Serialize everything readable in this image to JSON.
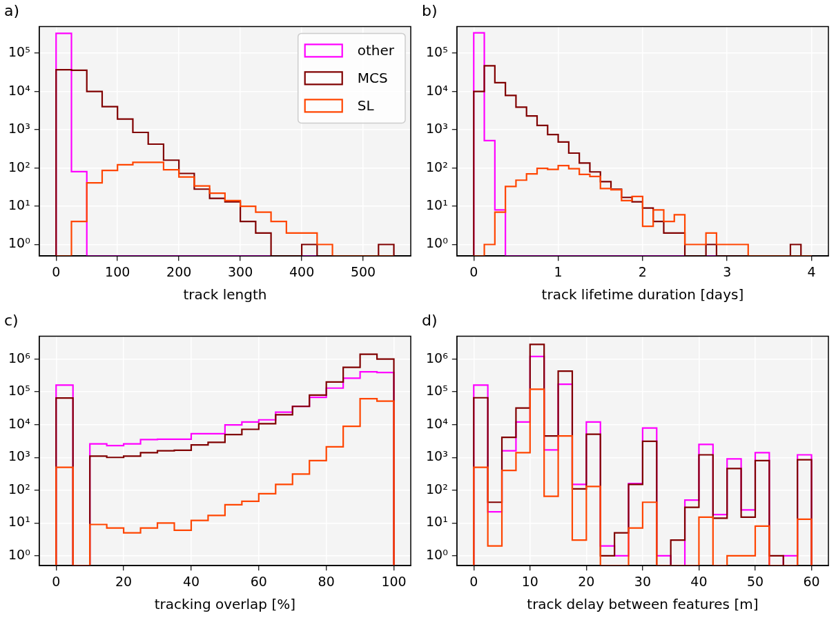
{
  "chart_data": [
    {
      "type": "histogram",
      "title": "a)",
      "xlabel": "track length",
      "bins": [
        0,
        25,
        50,
        75,
        100,
        125,
        150,
        175,
        200,
        225,
        250,
        275,
        300,
        325,
        350,
        375,
        400,
        425,
        450,
        475,
        500,
        525,
        550
      ],
      "series": [
        {
          "name": "other",
          "color": "#ff00ff",
          "values": [
            330000,
            80,
            null,
            null,
            null,
            null,
            null,
            null,
            null,
            null,
            null,
            null,
            null,
            null,
            null,
            null,
            null,
            null,
            null,
            null,
            null,
            null
          ]
        },
        {
          "name": "MCS",
          "color": "#800000",
          "values": [
            37000,
            36000,
            10000,
            4000,
            1900,
            850,
            420,
            160,
            72,
            28,
            16,
            13,
            4,
            2,
            null,
            null,
            1,
            null,
            null,
            null,
            null,
            1
          ]
        },
        {
          "name": "SL",
          "color": "#ff4500",
          "values": [
            null,
            4,
            41,
            86,
            122,
            140,
            140,
            90,
            58,
            34,
            22,
            14,
            10,
            7,
            4,
            2,
            2,
            1,
            null,
            null,
            null,
            null
          ]
        }
      ],
      "xlim": [
        -27.5,
        577.5
      ],
      "xticks": [
        0,
        100,
        200,
        300,
        400,
        500
      ],
      "ylim": [
        0.5,
        500000
      ],
      "yticks": [
        {
          "value": 1,
          "label": "10⁰"
        },
        {
          "value": 10,
          "label": "10¹"
        },
        {
          "value": 100,
          "label": "10²"
        },
        {
          "value": 1000,
          "label": "10³"
        },
        {
          "value": 10000,
          "label": "10⁴"
        },
        {
          "value": 100000,
          "label": "10⁵"
        }
      ],
      "log": "y",
      "grid": true,
      "legend": "top right"
    },
    {
      "type": "histogram",
      "title": "b)",
      "xlabel": "track lifetime duration [days]",
      "bins": [
        0,
        0.125,
        0.25,
        0.375,
        0.5,
        0.625,
        0.75,
        0.875,
        1,
        1.125,
        1.25,
        1.375,
        1.5,
        1.625,
        1.75,
        1.875,
        2,
        2.125,
        2.25,
        2.375,
        2.5,
        2.625,
        2.75,
        2.875,
        3,
        3.125,
        3.25,
        3.375,
        3.5,
        3.625,
        3.75,
        3.875,
        4
      ],
      "series": [
        {
          "color": "#ff00ff",
          "values": [
            340000,
            520,
            8,
            null,
            null,
            null,
            null,
            null,
            null,
            null,
            null,
            null,
            null,
            null,
            null,
            null,
            null,
            null,
            null,
            null,
            null,
            null,
            null,
            null,
            null,
            null,
            null,
            null,
            null,
            null,
            null,
            null
          ]
        },
        {
          "color": "#800000",
          "values": [
            10000,
            47000,
            17000,
            7900,
            3900,
            2300,
            1300,
            750,
            480,
            245,
            135,
            79,
            44,
            28,
            17,
            13,
            9,
            4,
            2,
            2,
            null,
            null,
            1,
            null,
            null,
            null,
            null,
            null,
            null,
            null,
            1,
            null
          ]
        },
        {
          "color": "#ff4500",
          "values": [
            null,
            1,
            7,
            33,
            48,
            70,
            98,
            92,
            115,
            96,
            68,
            60,
            29,
            27,
            14,
            18,
            3,
            8,
            4,
            6,
            1,
            1,
            2,
            1,
            1,
            1,
            null,
            null,
            null,
            null,
            null,
            null
          ]
        }
      ],
      "xlim": [
        -0.2,
        4.2
      ],
      "xticks": [
        0,
        1,
        2,
        3,
        4
      ],
      "ylim": [
        0.5,
        500000
      ],
      "yticks": [
        {
          "value": 1,
          "label": "10⁰"
        },
        {
          "value": 10,
          "label": "10¹"
        },
        {
          "value": 100,
          "label": "10²"
        },
        {
          "value": 1000,
          "label": "10³"
        },
        {
          "value": 10000,
          "label": "10⁴"
        },
        {
          "value": 100000,
          "label": "10⁵"
        }
      ],
      "log": "y",
      "grid": true
    },
    {
      "type": "histogram",
      "title": "c)",
      "xlabel": "tracking overlap [%]",
      "bins": [
        0,
        5,
        10,
        15,
        20,
        25,
        30,
        35,
        40,
        45,
        50,
        55,
        60,
        65,
        70,
        75,
        80,
        85,
        90,
        95,
        100
      ],
      "series": [
        {
          "color": "#ff00ff",
          "values": [
            160000,
            null,
            2600,
            2300,
            2600,
            3500,
            3600,
            3600,
            5300,
            5300,
            9800,
            12000,
            14000,
            24000,
            36000,
            68000,
            130000,
            260000,
            410000,
            390000
          ]
        },
        {
          "color": "#800000",
          "values": [
            65000,
            null,
            1100,
            1000,
            1100,
            1400,
            1600,
            1650,
            2400,
            2900,
            5000,
            7200,
            10700,
            20000,
            36000,
            80000,
            200000,
            560000,
            1400000,
            1000000
          ]
        },
        {
          "color": "#ff4500",
          "values": [
            500,
            null,
            9,
            7,
            5,
            7,
            10,
            6,
            12,
            17,
            36,
            46,
            78,
            150,
            310,
            800,
            2100,
            8900,
            62000,
            52000
          ]
        }
      ],
      "xlim": [
        -5,
        105
      ],
      "xticks": [
        0,
        20,
        40,
        60,
        80,
        100
      ],
      "ylim": [
        0.5,
        5000000
      ],
      "yticks": [
        {
          "value": 1,
          "label": "10⁰"
        },
        {
          "value": 10,
          "label": "10¹"
        },
        {
          "value": 100,
          "label": "10²"
        },
        {
          "value": 1000,
          "label": "10³"
        },
        {
          "value": 10000,
          "label": "10⁴"
        },
        {
          "value": 100000,
          "label": "10⁵"
        },
        {
          "value": 1000000,
          "label": "10⁶"
        }
      ],
      "log": "y",
      "grid": true
    },
    {
      "type": "histogram",
      "title": "d)",
      "xlabel": "track delay between features [m]",
      "bins": [
        0,
        2.5,
        5,
        7.5,
        10,
        12.5,
        15,
        17.5,
        20,
        22.5,
        25,
        27.5,
        30,
        32.5,
        35,
        37.5,
        40,
        42.5,
        45,
        47.5,
        50,
        52.5,
        55,
        57.5,
        60
      ],
      "series": [
        {
          "color": "#ff00ff",
          "values": [
            160000,
            22,
            1600,
            12000,
            1200000,
            1700,
            170000,
            150,
            12000,
            2,
            1,
            160,
            7900,
            1,
            null,
            50,
            2500,
            18,
            900,
            25,
            1400,
            null,
            1,
            1200
          ]
        },
        {
          "color": "#800000",
          "values": [
            66000,
            43,
            4100,
            32000,
            2800000,
            4500,
            430000,
            110,
            5100,
            1,
            5,
            150,
            3100,
            null,
            3,
            30,
            1200,
            14,
            460,
            15,
            800,
            1,
            null,
            850
          ]
        },
        {
          "color": "#ff4500",
          "values": [
            500,
            2,
            400,
            1400,
            120000,
            65,
            4500,
            3,
            130,
            null,
            null,
            7,
            43,
            null,
            null,
            null,
            15,
            null,
            1,
            1,
            8,
            null,
            null,
            13
          ]
        }
      ],
      "xlim": [
        -3,
        63
      ],
      "xticks": [
        0,
        10,
        20,
        30,
        40,
        50,
        60
      ],
      "ylim": [
        0.5,
        5000000
      ],
      "yticks": [
        {
          "value": 1,
          "label": "10⁰"
        },
        {
          "value": 10,
          "label": "10¹"
        },
        {
          "value": 100,
          "label": "10²"
        },
        {
          "value": 1000,
          "label": "10³"
        },
        {
          "value": 10000,
          "label": "10⁴"
        },
        {
          "value": 100000,
          "label": "10⁵"
        },
        {
          "value": 1000000,
          "label": "10⁶"
        }
      ],
      "log": "y",
      "grid": true
    }
  ]
}
